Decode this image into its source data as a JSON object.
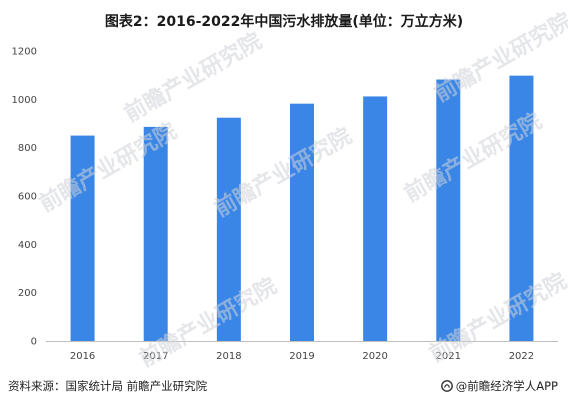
{
  "title": "图表2：2016-2022年中国污水排放量(单位：万立方米)",
  "watermark_text": "前瞻产业研究院",
  "source_text": "资料来源：国家统计局 前瞻产业研究院",
  "brand_text": "@前瞻经济学人APP",
  "colors": {
    "bar": "#3a86e6",
    "axis": "#bfbfbf",
    "text": "#444444"
  },
  "chart_data": {
    "type": "bar",
    "categories": [
      "2016",
      "2017",
      "2018",
      "2019",
      "2020",
      "2021",
      "2022"
    ],
    "values": [
      850,
      886,
      924,
      982,
      1012,
      1082,
      1098
    ],
    "ylim": [
      0,
      1200
    ],
    "yticks": [
      "0",
      "200",
      "400",
      "600",
      "800",
      "1000",
      "1200"
    ],
    "grid": false
  }
}
